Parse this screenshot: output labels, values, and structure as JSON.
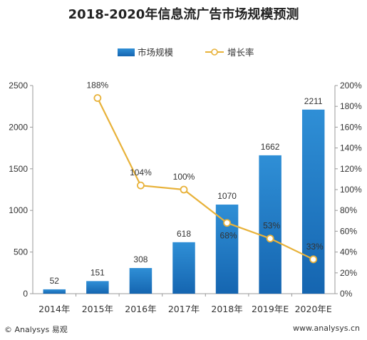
{
  "title": "2018-2020年信息流广告市场规模预测",
  "footer": {
    "source": "© Analysys 易观",
    "website": "www.analysys.cn"
  },
  "colors": {
    "bar_top": "#2f8fd6",
    "bar_bottom": "#1565b0",
    "line": "#e8b23a",
    "marker_fill": "#ffffff",
    "axis": "#999999"
  },
  "chart_data": {
    "type": "bar",
    "categories": [
      "2014年",
      "2015年",
      "2016年",
      "2017年",
      "2018年",
      "2019年E",
      "2020年E"
    ],
    "series": [
      {
        "name": "市场规模",
        "type": "bar",
        "axis": "left",
        "values": [
          52,
          151,
          308,
          618,
          1070,
          1662,
          2211
        ],
        "labels": [
          "52",
          "151",
          "308",
          "618",
          "1070",
          "1662",
          "2211"
        ]
      },
      {
        "name": "增长率",
        "type": "line",
        "axis": "right",
        "values": [
          null,
          188,
          104,
          100,
          68,
          53,
          33
        ],
        "labels": [
          "",
          "188%",
          "104%",
          "100%",
          "68%",
          "53%",
          "33%"
        ]
      }
    ],
    "ylim_left": [
      0,
      2500
    ],
    "yticks_left": [
      "0",
      "500",
      "1000",
      "1500",
      "2000",
      "2500"
    ],
    "ylim_right": [
      0,
      200
    ],
    "yticks_right": [
      "0%",
      "20%",
      "40%",
      "60%",
      "80%",
      "100%",
      "120%",
      "140%",
      "160%",
      "180%",
      "200%"
    ],
    "legend_position": "top-center",
    "grid": false
  }
}
